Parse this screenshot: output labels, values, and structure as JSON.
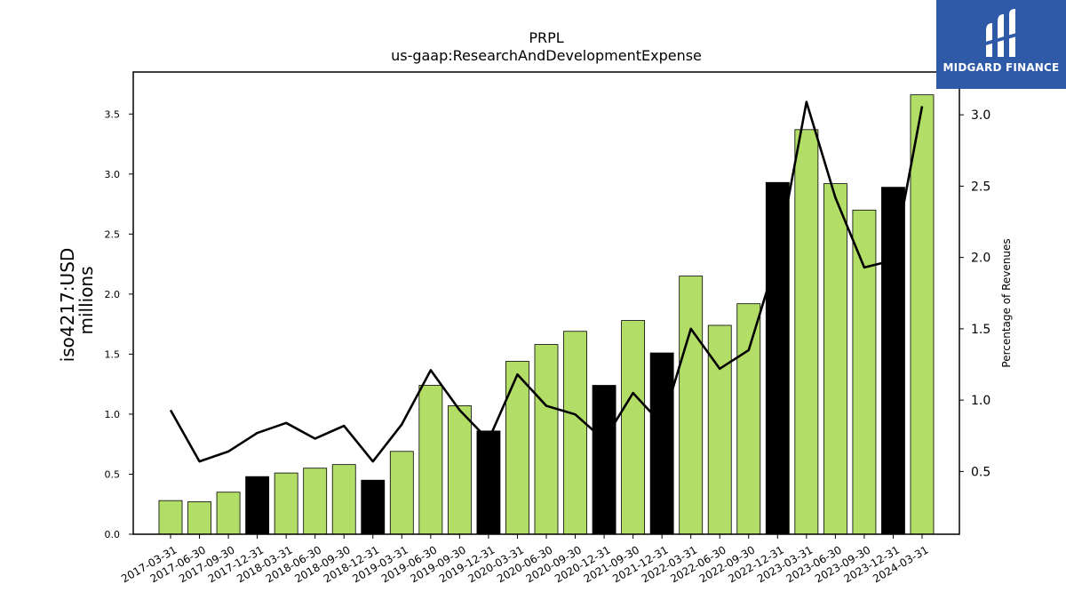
{
  "logo": {
    "text": "MIDGARD FINANCE",
    "color": "#2f5aa8"
  },
  "chart_data": {
    "type": "bar",
    "title": "PRPL",
    "subtitle": "us-gaap:ResearchAndDevelopmentExpense",
    "ylabel_left": [
      "iso4217:USD",
      "millions"
    ],
    "ylabel_right": "Percentage of Revenues",
    "ylim_left": [
      0,
      3.85
    ],
    "yticks_left": [
      "0.0",
      "0.5",
      "1.0",
      "1.5",
      "2.0",
      "2.5",
      "3.0",
      "3.5"
    ],
    "ylim_right": [
      0.06,
      3.3
    ],
    "yticks_right": [
      "0.5",
      "1.0",
      "1.5",
      "2.0",
      "2.5",
      "3.0"
    ],
    "colors": {
      "quarter": "#b2dd67",
      "year_end": "#000000",
      "line": "#000000"
    },
    "categories": [
      "2017-03-31",
      "2017-06-30",
      "2017-09-30",
      "2017-12-31",
      "2018-03-31",
      "2018-06-30",
      "2018-09-30",
      "2018-12-31",
      "2019-03-31",
      "2019-06-30",
      "2019-09-30",
      "2019-12-31",
      "2020-03-31",
      "2020-06-30",
      "2020-09-30",
      "2020-12-31",
      "2021-09-30",
      "2021-12-31",
      "2022-03-31",
      "2022-06-30",
      "2022-09-30",
      "2022-12-31",
      "2023-03-31",
      "2023-06-30",
      "2023-09-30",
      "2023-12-31",
      "2024-03-31"
    ],
    "series": [
      {
        "type": "bar",
        "values": [
          0.28,
          0.27,
          0.35,
          0.48,
          0.51,
          0.55,
          0.58,
          0.45,
          0.69,
          1.24,
          1.07,
          0.86,
          1.44,
          1.58,
          1.69,
          1.24,
          1.78,
          1.51,
          2.15,
          1.74,
          1.92,
          2.93,
          3.37,
          2.92,
          2.7,
          2.89,
          3.66
        ],
        "year_end": [
          false,
          false,
          false,
          true,
          false,
          false,
          false,
          true,
          false,
          false,
          false,
          true,
          false,
          false,
          false,
          true,
          false,
          true,
          false,
          false,
          false,
          true,
          false,
          false,
          false,
          true,
          false
        ]
      },
      {
        "type": "line",
        "axis": "right",
        "values": [
          0.93,
          0.57,
          0.64,
          0.77,
          0.84,
          0.73,
          0.82,
          0.57,
          0.83,
          1.21,
          0.93,
          0.72,
          1.18,
          0.96,
          0.9,
          0.72,
          1.05,
          0.83,
          1.5,
          1.22,
          1.35,
          2.01,
          3.09,
          2.42,
          1.93,
          1.98,
          3.06
        ]
      }
    ]
  }
}
